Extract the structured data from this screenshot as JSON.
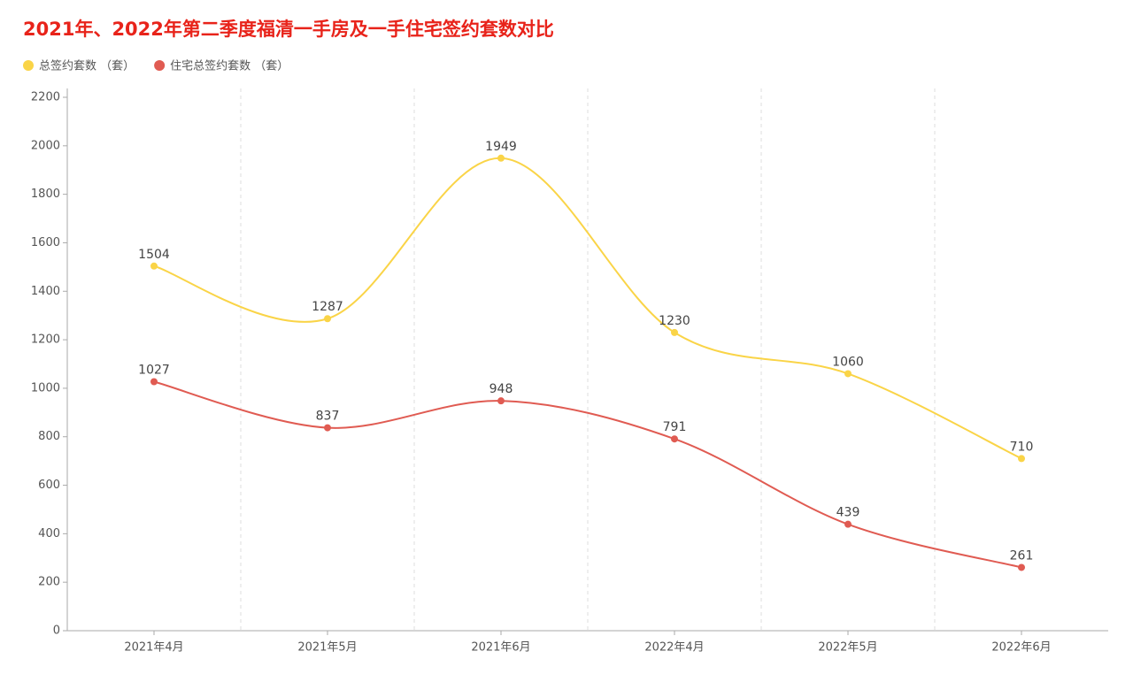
{
  "chart_data": {
    "type": "line",
    "title": "2021年、2022年第二季度福清一手房及一手住宅签约套数对比",
    "categories": [
      "2021年4月",
      "2021年5月",
      "2021年6月",
      "2022年4月",
      "2022年5月",
      "2022年6月"
    ],
    "series": [
      {
        "name": "总签约套数 （套）",
        "color": "#fad447",
        "values": [
          1504,
          1287,
          1949,
          1230,
          1060,
          710
        ]
      },
      {
        "name": "住宅总签约套数 （套）",
        "color": "#e05b52",
        "values": [
          1027,
          837,
          948,
          791,
          439,
          261
        ]
      }
    ],
    "ylim": [
      0,
      2200
    ],
    "yticks": [
      0,
      200,
      400,
      600,
      800,
      1000,
      1200,
      1400,
      1600,
      1800,
      2000,
      2200
    ],
    "smooth": true,
    "legend": "top-left"
  }
}
